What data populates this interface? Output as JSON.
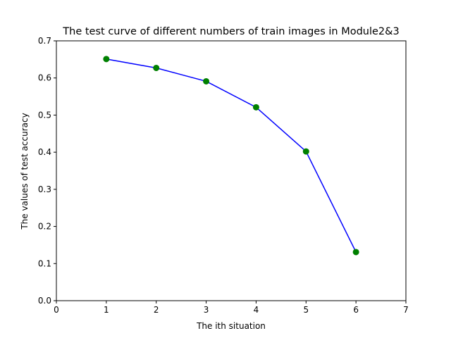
{
  "chart_data": {
    "type": "line",
    "title": "The test curve of different numbers of train images in Module2&3",
    "xlabel": "The ith situation",
    "ylabel": "The values of test accuracy",
    "x": [
      1,
      2,
      3,
      4,
      5,
      6
    ],
    "series": [
      {
        "values": [
          0.651,
          0.627,
          0.591,
          0.521,
          0.402,
          0.131
        ],
        "line_color": "#0000ff",
        "marker_color": "#008000",
        "marker": "circle"
      }
    ],
    "xlim": [
      0,
      7
    ],
    "ylim": [
      0,
      0.7
    ],
    "xticks": [
      "0",
      "1",
      "2",
      "3",
      "4",
      "5",
      "6",
      "7"
    ],
    "yticks": [
      "0.0",
      "0.1",
      "0.2",
      "0.3",
      "0.4",
      "0.5",
      "0.6",
      "0.7"
    ],
    "grid": false,
    "legend": false
  }
}
